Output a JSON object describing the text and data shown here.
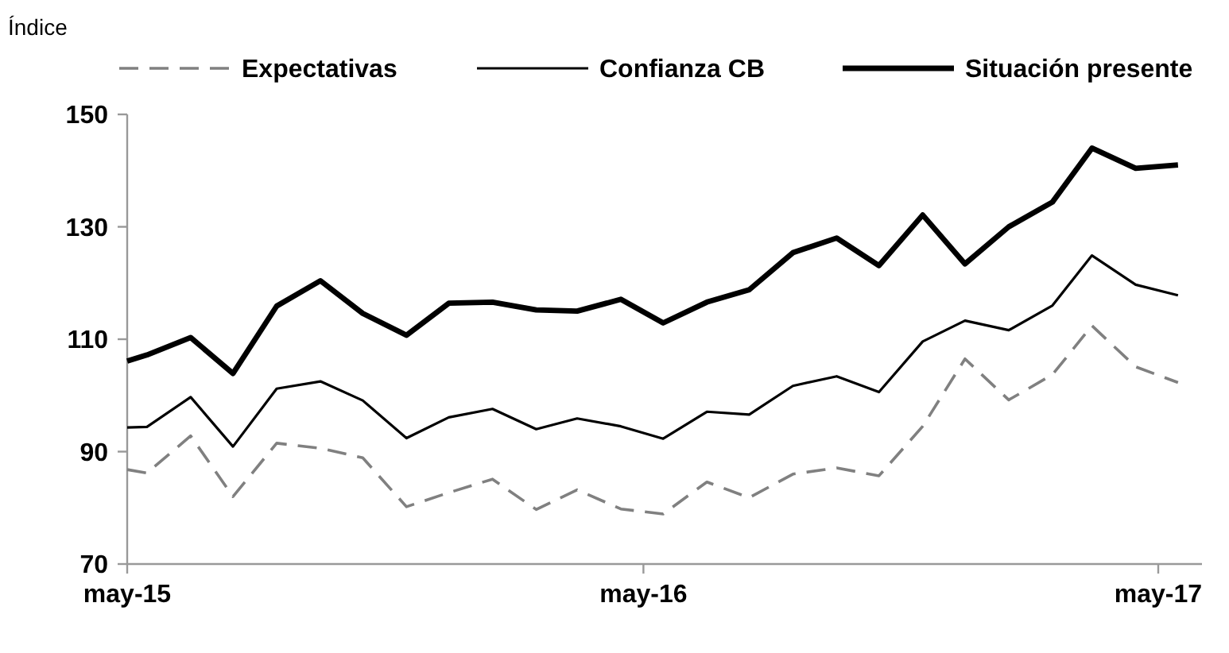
{
  "chart_data": {
    "type": "line",
    "ylabel": "Índice",
    "x": [
      "2015-05-01",
      "2015-05-15",
      "2015-06-15",
      "2015-07-15",
      "2015-08-15",
      "2015-09-15",
      "2015-10-15",
      "2015-11-15",
      "2015-12-15",
      "2016-01-15",
      "2016-02-15",
      "2016-03-15",
      "2016-04-15",
      "2016-05-15",
      "2016-06-15",
      "2016-07-15",
      "2016-08-15",
      "2016-09-15",
      "2016-10-15",
      "2016-11-15",
      "2016-12-15",
      "2017-01-15",
      "2017-02-15",
      "2017-03-15",
      "2017-04-15",
      "2017-05-15"
    ],
    "xlim": [
      "2015-05-01",
      "2017-06-01"
    ],
    "xticks": [
      {
        "value": "2015-05-01",
        "label": "may-15"
      },
      {
        "value": "2016-05-01",
        "label": "may-16"
      },
      {
        "value": "2017-05-01",
        "label": "may-17"
      }
    ],
    "ylim": [
      70,
      150
    ],
    "yticks": [
      70,
      90,
      110,
      130,
      150
    ],
    "grid": false,
    "legend": "top",
    "marker": "none",
    "series": [
      {
        "name": "Expectativas",
        "color": "#808080",
        "line_style": "dashed",
        "values": [
          86.8,
          86.2,
          92.8,
          82.0,
          91.5,
          90.6,
          88.9,
          80.2,
          82.7,
          85.1,
          79.7,
          83.2,
          79.8,
          78.9,
          84.6,
          81.8,
          86.0,
          87.1,
          85.7,
          94.5,
          106.5,
          99.2,
          103.7,
          112.4,
          105.1,
          102.3
        ]
      },
      {
        "name": "Confianza CB",
        "color": "#000000",
        "line_style": "solid",
        "values": [
          94.3,
          94.4,
          99.7,
          90.9,
          101.2,
          102.5,
          99.1,
          92.4,
          96.1,
          97.6,
          94.0,
          95.9,
          94.5,
          92.3,
          97.1,
          96.6,
          101.7,
          103.4,
          100.6,
          109.6,
          113.3,
          111.6,
          116.0,
          124.9,
          119.7,
          117.8
        ]
      },
      {
        "name": "Situación presente",
        "color": "#000000",
        "line_style": "solid",
        "values": [
          106.1,
          107.2,
          110.3,
          103.9,
          115.9,
          120.4,
          114.6,
          110.7,
          116.4,
          116.6,
          115.2,
          115.0,
          117.1,
          112.9,
          116.6,
          118.8,
          125.4,
          128.0,
          123.1,
          132.1,
          123.4,
          130.0,
          134.4,
          144.0,
          140.4,
          141.0
        ]
      }
    ]
  }
}
